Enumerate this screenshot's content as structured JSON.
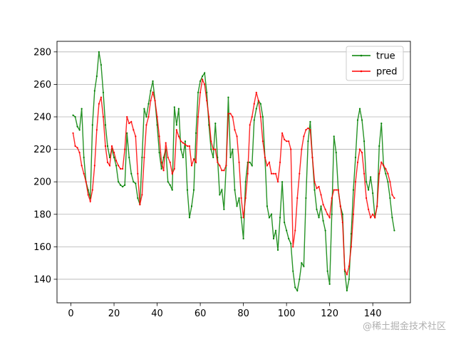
{
  "chart_data": {
    "type": "line",
    "x": [
      1,
      2,
      3,
      4,
      5,
      6,
      7,
      8,
      9,
      10,
      11,
      12,
      13,
      14,
      15,
      16,
      17,
      18,
      19,
      20,
      21,
      22,
      23,
      24,
      25,
      26,
      27,
      28,
      29,
      30,
      31,
      32,
      33,
      34,
      35,
      36,
      37,
      38,
      39,
      40,
      41,
      42,
      43,
      44,
      45,
      46,
      47,
      48,
      49,
      50,
      51,
      52,
      53,
      54,
      55,
      56,
      57,
      58,
      59,
      60,
      61,
      62,
      63,
      64,
      65,
      66,
      67,
      68,
      69,
      70,
      71,
      72,
      73,
      74,
      75,
      76,
      77,
      78,
      79,
      80,
      81,
      82,
      83,
      84,
      85,
      86,
      87,
      88,
      89,
      90,
      91,
      92,
      93,
      94,
      95,
      96,
      97,
      98,
      99,
      100,
      101,
      102,
      103,
      104,
      105,
      106,
      107,
      108,
      109,
      110,
      111,
      112,
      113,
      114,
      115,
      116,
      117,
      118,
      119,
      120,
      121,
      122,
      123,
      124,
      125,
      126,
      127,
      128,
      129,
      130,
      131,
      132,
      133,
      134,
      135,
      136,
      137,
      138,
      139,
      140,
      141,
      142,
      143,
      144,
      145,
      146,
      147,
      148,
      149,
      150
    ],
    "series": [
      {
        "name": "true",
        "color": "green",
        "values": [
          241,
          240,
          234,
          232,
          245,
          215,
          200,
          195,
          190,
          235,
          256,
          265,
          280,
          272,
          255,
          235,
          222,
          215,
          220,
          215,
          210,
          200,
          198,
          197,
          198,
          230,
          215,
          205,
          200,
          199,
          190,
          186,
          215,
          245,
          240,
          248,
          256,
          262,
          250,
          235,
          218,
          208,
          215,
          220,
          200,
          198,
          195,
          246,
          235,
          245,
          220,
          215,
          225,
          195,
          178,
          185,
          195,
          230,
          255,
          262,
          265,
          267,
          255,
          235,
          220,
          215,
          236,
          215,
          192,
          195,
          183,
          210,
          252,
          215,
          220,
          195,
          185,
          190,
          178,
          165,
          200,
          212,
          212,
          210,
          238,
          245,
          250,
          248,
          240,
          215,
          185,
          178,
          180,
          165,
          170,
          158,
          178,
          200,
          175,
          170,
          165,
          162,
          145,
          135,
          133,
          140,
          150,
          148,
          190,
          225,
          237,
          215,
          195,
          183,
          178,
          185,
          176,
          170,
          145,
          137,
          180,
          228,
          218,
          195,
          185,
          180,
          145,
          133,
          140,
          168,
          195,
          215,
          238,
          245,
          238,
          225,
          200,
          195,
          203,
          193,
          178,
          185,
          222,
          236,
          210,
          205,
          200,
          190,
          178,
          170
        ]
      },
      {
        "name": "pred",
        "color": "red",
        "values": [
          230,
          222,
          221,
          218,
          210,
          205,
          200,
          192,
          188,
          195,
          210,
          232,
          248,
          252,
          240,
          222,
          212,
          210,
          222,
          218,
          213,
          210,
          208,
          208,
          220,
          240,
          236,
          237,
          232,
          228,
          205,
          186,
          192,
          215,
          235,
          240,
          250,
          255,
          250,
          240,
          228,
          212,
          207,
          224,
          215,
          212,
          205,
          208,
          232,
          228,
          225,
          224,
          223,
          222,
          222,
          210,
          214,
          212,
          240,
          255,
          263,
          260,
          250,
          240,
          225,
          220,
          220,
          212,
          210,
          207,
          207,
          210,
          242,
          242,
          240,
          232,
          228,
          212,
          190,
          178,
          190,
          205,
          235,
          240,
          248,
          255,
          250,
          240,
          225,
          215,
          210,
          212,
          205,
          205,
          205,
          200,
          212,
          230,
          226,
          225,
          225,
          220,
          160,
          170,
          190,
          205,
          220,
          228,
          232,
          233,
          232,
          215,
          200,
          196,
          197,
          192,
          186,
          183,
          180,
          178,
          190,
          195,
          195,
          195,
          185,
          175,
          146,
          143,
          148,
          160,
          180,
          200,
          212,
          220,
          218,
          205,
          190,
          183,
          178,
          180,
          178,
          185,
          205,
          212,
          210,
          208,
          205,
          200,
          192,
          190
        ]
      }
    ],
    "xlim": [
      -6.45,
      157.45
    ],
    "xticks": [
      0,
      20,
      40,
      60,
      80,
      100,
      120,
      140
    ],
    "ylim": [
      125.5,
      286.5
    ],
    "yticks": [
      140,
      160,
      180,
      200,
      220,
      240,
      260,
      280
    ],
    "grid": "y",
    "legend": "upper right",
    "markers": true
  },
  "watermark": "@稀土掘金技术社区"
}
